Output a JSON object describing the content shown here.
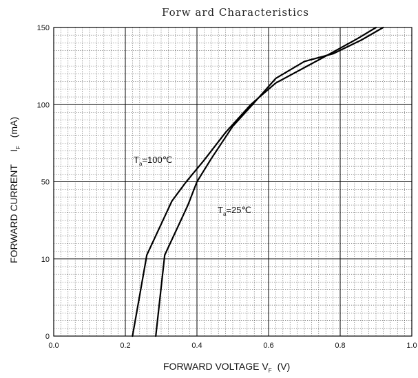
{
  "chart_data": {
    "type": "line",
    "title": "Forw ard Characteristics",
    "xlabel": {
      "main": "FORWARD VOLTAGE   V",
      "sub": "F",
      "unit": "(V)"
    },
    "ylabel": {
      "main": "FORWARD CURRENT",
      "symbol": "I",
      "sub": "F",
      "unit": "(mA)"
    },
    "xlim": [
      0.0,
      1.0
    ],
    "ylim": [
      0,
      150
    ],
    "x_ticks": [
      "0.0",
      "0.2",
      "0.4",
      "0.6",
      "0.8",
      "1.0"
    ],
    "y_ticks": [
      "0",
      "10",
      "50",
      "100",
      "150"
    ],
    "grid": true,
    "series": [
      {
        "name": "Ta=100℃",
        "label_main": "T",
        "label_sub": "a",
        "label_rest": "=100℃",
        "x": [
          0.22,
          0.26,
          0.3,
          0.33,
          0.37,
          0.42,
          0.48,
          0.55,
          0.62,
          0.7,
          0.78,
          0.85,
          0.9
        ],
        "y": [
          0,
          12,
          28,
          40,
          50,
          64,
          82,
          100,
          114,
          124,
          134,
          143,
          150
        ]
      },
      {
        "name": "Ta=25℃",
        "label_main": "T",
        "label_sub": "a",
        "label_rest": "=25℃",
        "x": [
          0.285,
          0.31,
          0.34,
          0.375,
          0.4,
          0.44,
          0.5,
          0.555,
          0.62,
          0.7,
          0.78,
          0.86,
          0.92
        ],
        "y": [
          0,
          12,
          24,
          38,
          50,
          65,
          86,
          100,
          117,
          128,
          133,
          142,
          150
        ]
      }
    ]
  }
}
